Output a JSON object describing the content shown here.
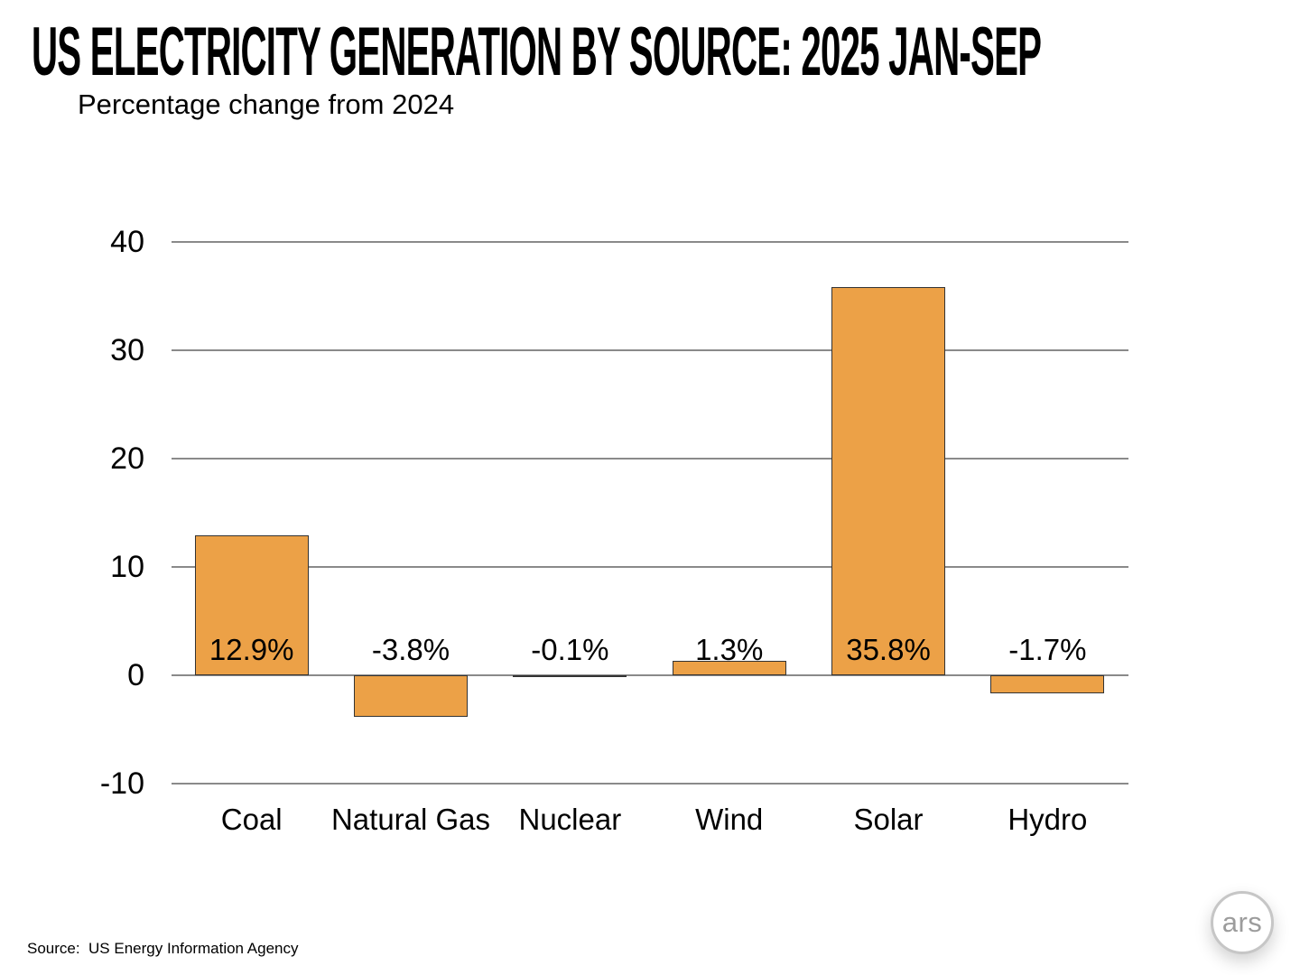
{
  "header": {
    "title": "US ELECTRICITY GENERATION BY SOURCE: 2025 JAN-SEP",
    "subtitle": "Percentage change from 2024"
  },
  "chart_data": {
    "type": "bar",
    "title": "US ELECTRICITY GENERATION BY SOURCE: 2025 JAN-SEP",
    "subtitle": "Percentage change from 2024",
    "categories": [
      "Coal",
      "Natural Gas",
      "Nuclear",
      "Wind",
      "Solar",
      "Hydro"
    ],
    "values": [
      12.9,
      -3.8,
      -0.1,
      1.3,
      35.8,
      -1.7
    ],
    "value_labels": [
      "12.9%",
      "-3.8%",
      "-0.1%",
      "1.3%",
      "35.8%",
      "-1.7%"
    ],
    "xlabel": "",
    "ylabel": "",
    "ylim": [
      -10,
      40
    ],
    "yticks": [
      40,
      30,
      20,
      10,
      0,
      -10
    ],
    "grid": "horizontal-only",
    "legend": "none",
    "bar_color": "#ECA147",
    "bar_border_color": "#333333",
    "gridline_color": "#8a8a8a",
    "text_color": "#000000"
  },
  "footer": {
    "source": "Source:  US Energy Information Agency"
  },
  "branding": {
    "logo_text": "ars"
  }
}
